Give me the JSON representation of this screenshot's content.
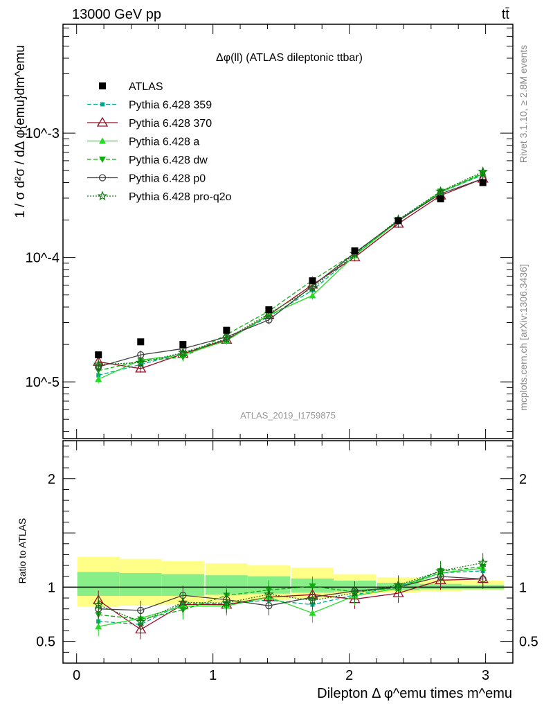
{
  "header": {
    "left": "13000 GeV pp",
    "right": "tt̄"
  },
  "side_labels": {
    "rivet": "Rivet 3.1.10, ≥ 2.8M events",
    "mcplots": "mcplots.cern.ch [arXiv:1306.3436]"
  },
  "colors": {
    "ATLAS": "#000000",
    "p359": "#00a88a",
    "p370": "#9b0a22",
    "pa": "#22dd22",
    "pdw": "#11aa11",
    "pp0": "#404040",
    "pq2o": "#117711",
    "band_outer": "#ffff88",
    "band_inner": "#88ee88"
  },
  "chart_data": {
    "type": "scatter",
    "title": "Δφ(ll) (ATLAS dileptonic ttbar)",
    "analysis_label": "ATLAS_2019_I1759875",
    "xlabel": "Dilepton Δ φ^emu times m^emu",
    "ylabel": "1 / σ d²σ / dΔ φ{emu}dm^emu",
    "ratio_ylabel": "Ratio to ATLAS",
    "xlim": [
      -0.1,
      3.2
    ],
    "ylim": [
      3.5e-06,
      0.0075
    ],
    "yscale": "log",
    "ratio_ylim": [
      0.3,
      2.35
    ],
    "x_ticks": [
      "0",
      "1",
      "2",
      "3"
    ],
    "y_ticks": [
      "10^-5",
      "10^-4",
      "10^-3"
    ],
    "ratio_ticks": [
      "0.5",
      "1",
      "2"
    ],
    "legend_position": "top-left",
    "x": [
      0.16,
      0.47,
      0.78,
      1.1,
      1.41,
      1.73,
      2.04,
      2.36,
      2.67,
      2.98
    ],
    "data": {
      "name": "ATLAS",
      "values": [
        1.65e-05,
        2.1e-05,
        2e-05,
        2.6e-05,
        3.8e-05,
        6.5e-05,
        0.000113,
        0.000198,
        0.000296,
        0.0004
      ]
    },
    "band_outer": [
      [
        0.82,
        1.28
      ],
      [
        0.83,
        1.26
      ],
      [
        0.84,
        1.24
      ],
      [
        0.86,
        1.22
      ],
      [
        0.88,
        1.2
      ],
      [
        0.9,
        1.18
      ],
      [
        0.93,
        1.12
      ],
      [
        0.95,
        1.09
      ],
      [
        0.96,
        1.07
      ],
      [
        0.97,
        1.06
      ]
    ],
    "band_inner": [
      [
        0.92,
        1.14
      ],
      [
        0.92,
        1.13
      ],
      [
        0.92,
        1.12
      ],
      [
        0.93,
        1.11
      ],
      [
        0.94,
        1.1
      ],
      [
        0.95,
        1.08
      ],
      [
        0.96,
        1.06
      ],
      [
        0.97,
        1.04
      ],
      [
        0.98,
        1.03
      ],
      [
        0.98,
        1.02
      ]
    ],
    "series": [
      {
        "name": "Pythia 6.428 359",
        "key": "p359",
        "marker": "square",
        "dash": "6,3",
        "values": [
          1.13e-05,
          1.38e-05,
          1.7e-05,
          2.2e-05,
          3.35e-05,
          5.45e-05,
          0.000105,
          0.0002,
          0.000335,
          0.00046
        ]
      },
      {
        "name": "Pythia 6.428 370",
        "key": "p370",
        "marker": "triangle-open",
        "dash": "",
        "values": [
          1.45e-05,
          1.28e-05,
          1.68e-05,
          2.18e-05,
          3.45e-05,
          6.05e-05,
          0.0001005,
          0.000187,
          0.000315,
          0.00043
        ]
      },
      {
        "name": "Pythia 6.428 a",
        "key": "pa",
        "marker": "triangle",
        "dash": "",
        "values": [
          1.05e-05,
          1.5e-05,
          1.65e-05,
          2.15e-05,
          3.45e-05,
          4.95e-05,
          0.000104,
          0.000196,
          0.000335,
          0.00047
        ]
      },
      {
        "name": "Pythia 6.428 dw",
        "key": "pdw",
        "marker": "triangle-down",
        "dash": "6,3",
        "values": [
          1.23e-05,
          1.48e-05,
          1.58e-05,
          2.4e-05,
          3.7e-05,
          6.55e-05,
          0.000108,
          0.000197,
          0.00034,
          0.000475
        ]
      },
      {
        "name": "Pythia 6.428 p0",
        "key": "pp0",
        "marker": "circle-open",
        "dash": "",
        "values": [
          1.32e-05,
          1.65e-05,
          1.85e-05,
          2.3e-05,
          3.15e-05,
          5.9e-05,
          0.000109,
          0.000198,
          0.000325,
          0.00043
        ]
      },
      {
        "name": "Pythia 6.428 pro-q2o",
        "key": "pq2o",
        "marker": "star",
        "dash": "2,2",
        "values": [
          1.38e-05,
          1.43e-05,
          1.72e-05,
          2.22e-05,
          3.55e-05,
          5.7e-05,
          0.000107,
          0.000202,
          0.00034,
          0.00049
        ]
      }
    ]
  }
}
